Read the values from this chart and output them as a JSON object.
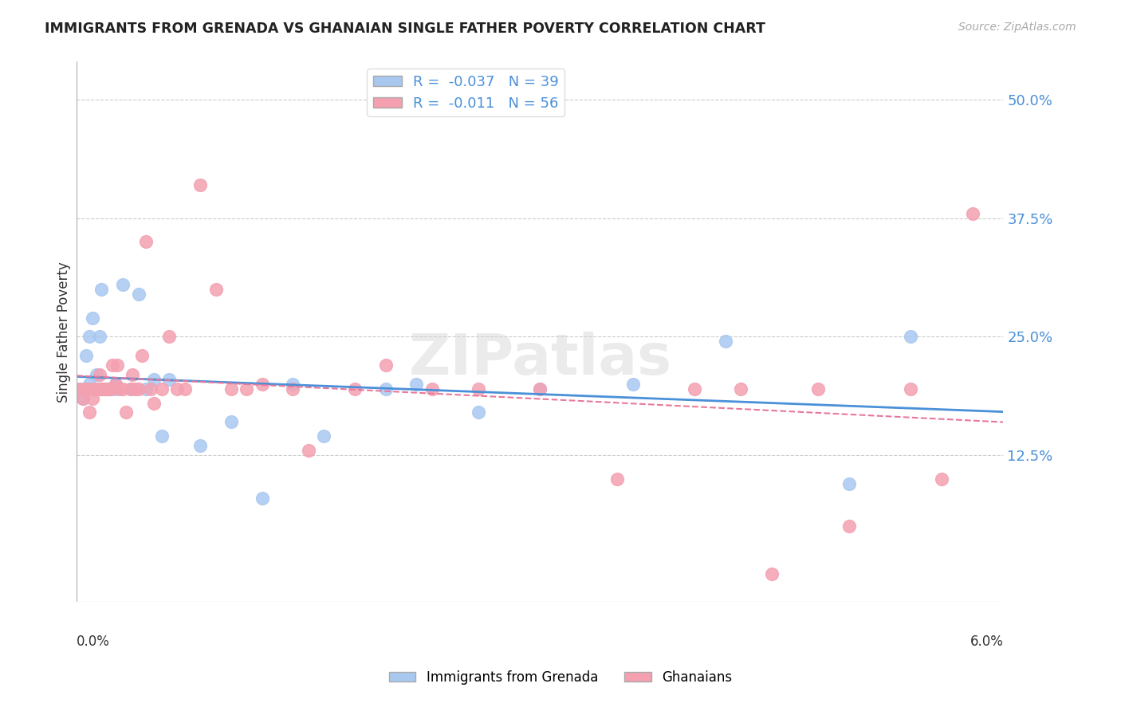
{
  "title": "IMMIGRANTS FROM GRENADA VS GHANAIAN SINGLE FATHER POVERTY CORRELATION CHART",
  "source": "Source: ZipAtlas.com",
  "ylabel": "Single Father Poverty",
  "xmin": 0.0,
  "xmax": 0.06,
  "ymin": -0.03,
  "ymax": 0.54,
  "color_blue": "#a8c8f0",
  "color_pink": "#f4a0b0",
  "color_blue_line": "#4a90d9",
  "color_pink_line": "#e8789a",
  "ytick_vals": [
    0.125,
    0.25,
    0.375,
    0.5
  ],
  "ytick_labels": [
    "12.5%",
    "25.0%",
    "37.5%",
    "50.0%"
  ],
  "blue_x": [
    0.0002,
    0.0004,
    0.0006,
    0.0008,
    0.0008,
    0.001,
    0.001,
    0.0012,
    0.0013,
    0.0015,
    0.0015,
    0.0016,
    0.0016,
    0.0018,
    0.002,
    0.002,
    0.0022,
    0.0025,
    0.0025,
    0.003,
    0.0035,
    0.004,
    0.0045,
    0.005,
    0.0055,
    0.006,
    0.008,
    0.01,
    0.012,
    0.014,
    0.016,
    0.02,
    0.022,
    0.026,
    0.03,
    0.036,
    0.042,
    0.05,
    0.054
  ],
  "blue_y": [
    0.195,
    0.185,
    0.23,
    0.2,
    0.25,
    0.27,
    0.195,
    0.195,
    0.21,
    0.25,
    0.195,
    0.195,
    0.3,
    0.195,
    0.195,
    0.195,
    0.195,
    0.195,
    0.2,
    0.305,
    0.195,
    0.295,
    0.195,
    0.205,
    0.145,
    0.205,
    0.135,
    0.16,
    0.08,
    0.2,
    0.145,
    0.195,
    0.2,
    0.17,
    0.195,
    0.2,
    0.245,
    0.095,
    0.25
  ],
  "pink_x": [
    0.0002,
    0.0004,
    0.0005,
    0.0007,
    0.0008,
    0.001,
    0.001,
    0.0012,
    0.0013,
    0.0014,
    0.0015,
    0.0016,
    0.0017,
    0.0018,
    0.002,
    0.002,
    0.0022,
    0.0023,
    0.0025,
    0.0026,
    0.0028,
    0.003,
    0.0032,
    0.0035,
    0.0036,
    0.0038,
    0.004,
    0.0042,
    0.0045,
    0.0048,
    0.005,
    0.0055,
    0.006,
    0.0065,
    0.007,
    0.008,
    0.009,
    0.01,
    0.011,
    0.012,
    0.014,
    0.015,
    0.018,
    0.02,
    0.023,
    0.026,
    0.03,
    0.035,
    0.04,
    0.043,
    0.045,
    0.048,
    0.05,
    0.054,
    0.056,
    0.058
  ],
  "pink_y": [
    0.195,
    0.185,
    0.195,
    0.195,
    0.17,
    0.195,
    0.185,
    0.195,
    0.195,
    0.195,
    0.21,
    0.195,
    0.195,
    0.195,
    0.195,
    0.195,
    0.195,
    0.22,
    0.2,
    0.22,
    0.195,
    0.195,
    0.17,
    0.195,
    0.21,
    0.195,
    0.195,
    0.23,
    0.35,
    0.195,
    0.18,
    0.195,
    0.25,
    0.195,
    0.195,
    0.41,
    0.3,
    0.195,
    0.195,
    0.2,
    0.195,
    0.13,
    0.195,
    0.22,
    0.195,
    0.195,
    0.195,
    0.1,
    0.195,
    0.195,
    0.0,
    0.195,
    0.05,
    0.195,
    0.1,
    0.38
  ]
}
